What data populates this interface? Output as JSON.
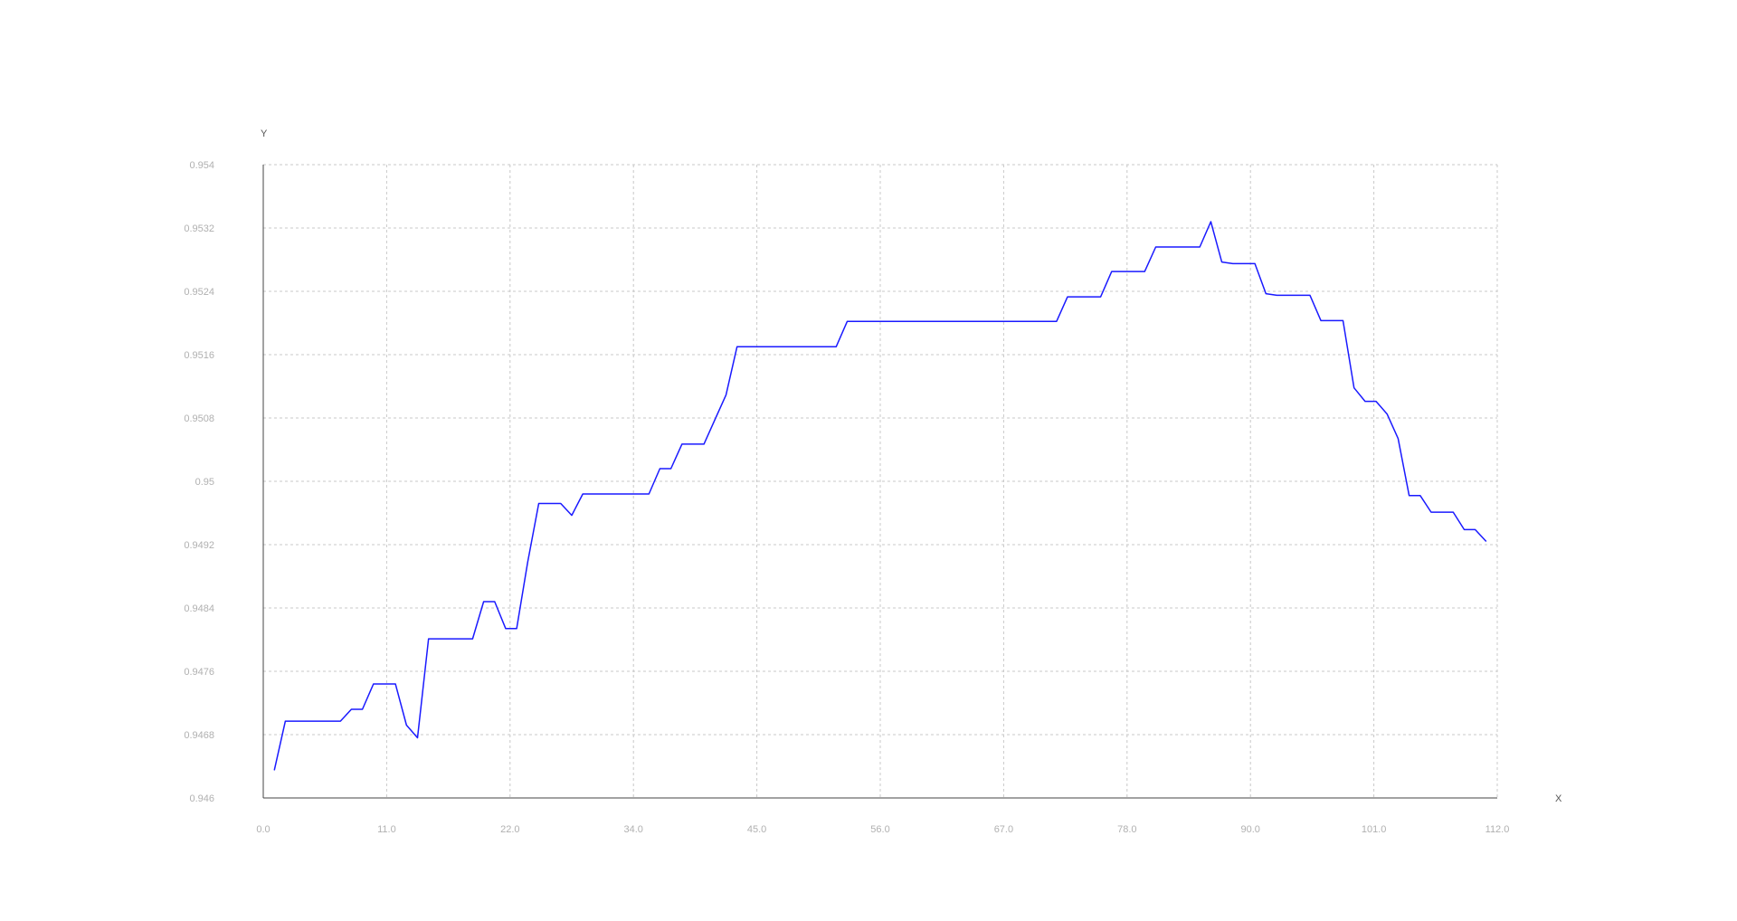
{
  "chart_data": {
    "type": "line",
    "title": "",
    "xlabel": "X",
    "ylabel": "Y",
    "grid": true,
    "xlim": [
      0,
      112
    ],
    "ylim": [
      0.946,
      0.954
    ],
    "x_ticks": [
      "0.0",
      "11.0",
      "22.0",
      "34.0",
      "45.0",
      "56.0",
      "67.0",
      "78.0",
      "90.0",
      "101.0",
      "112.0"
    ],
    "y_ticks": [
      "0.946",
      "0.9468",
      "0.9476",
      "0.9484",
      "0.9492",
      "0.95",
      "0.9508",
      "0.9516",
      "0.9524",
      "0.9532",
      "0.954"
    ],
    "colors": {
      "line": "#1a1aff",
      "grid": "#c8c8c8",
      "axis": "#444444",
      "tick_text": "#b0b0b0"
    },
    "series": [
      {
        "x": [
          1,
          2,
          3,
          4,
          5,
          6,
          7,
          8,
          9,
          10,
          11,
          12,
          13,
          14,
          15,
          16,
          17,
          18,
          19,
          20,
          21,
          22,
          23,
          24,
          25,
          26,
          27,
          28,
          29,
          30,
          31,
          32,
          33,
          34,
          35,
          36,
          37,
          38,
          39,
          40,
          41,
          42,
          43,
          44,
          45,
          46,
          47,
          48,
          49,
          50,
          51,
          52,
          53,
          54,
          55,
          56,
          57,
          58,
          59,
          60,
          61,
          62,
          63,
          64,
          65,
          66,
          67,
          68,
          69,
          70,
          71,
          72,
          73,
          74,
          75,
          76,
          77,
          78,
          79,
          80,
          81,
          82,
          83,
          84,
          85,
          86,
          87,
          88,
          89,
          90,
          91,
          92,
          93,
          94,
          95,
          96,
          97,
          98,
          99,
          100,
          101,
          102,
          103,
          104,
          105,
          106,
          107,
          108,
          109,
          110,
          111
        ],
        "values": [
          0.94635,
          0.94697,
          0.94697,
          0.94697,
          0.94697,
          0.94697,
          0.94697,
          0.94712,
          0.94712,
          0.94744,
          0.94744,
          0.94744,
          0.94692,
          0.94676,
          0.94801,
          0.94801,
          0.94801,
          0.94801,
          0.94801,
          0.94848,
          0.94848,
          0.94814,
          0.94814,
          0.94898,
          0.94972,
          0.94972,
          0.94972,
          0.94957,
          0.94984,
          0.94984,
          0.94984,
          0.94984,
          0.94984,
          0.94984,
          0.94984,
          0.95016,
          0.95016,
          0.95047,
          0.95047,
          0.95047,
          0.95078,
          0.95109,
          0.9517,
          0.9517,
          0.9517,
          0.9517,
          0.9517,
          0.9517,
          0.9517,
          0.9517,
          0.9517,
          0.9517,
          0.95202,
          0.95202,
          0.95202,
          0.95202,
          0.95202,
          0.95202,
          0.95202,
          0.95202,
          0.95202,
          0.95202,
          0.95202,
          0.95202,
          0.95202,
          0.95202,
          0.95202,
          0.95202,
          0.95202,
          0.95202,
          0.95202,
          0.95202,
          0.95233,
          0.95233,
          0.95233,
          0.95233,
          0.95265,
          0.95265,
          0.95265,
          0.95265,
          0.95296,
          0.95296,
          0.95296,
          0.95296,
          0.95296,
          0.95328,
          0.95277,
          0.95275,
          0.95275,
          0.95275,
          0.95237,
          0.95235,
          0.95235,
          0.95235,
          0.95235,
          0.95203,
          0.95203,
          0.95203,
          0.95118,
          0.95101,
          0.95101,
          0.95085,
          0.95054,
          0.94982,
          0.94982,
          0.94961,
          0.94961,
          0.94961,
          0.94939,
          0.94939,
          0.94924
        ]
      }
    ]
  }
}
